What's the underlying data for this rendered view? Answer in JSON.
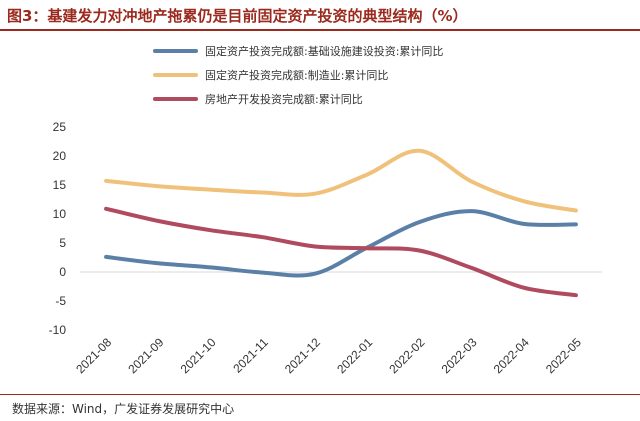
{
  "chart_data": {
    "type": "line",
    "title": "图3：基建发力对冲地产拖累仍是目前固定资产投资的典型结构（%）",
    "categories": [
      "2021-08",
      "2021-09",
      "2021-10",
      "2021-11",
      "2021-12",
      "2022-01",
      "2022-02",
      "2022-03",
      "2022-04",
      "2022-05"
    ],
    "ylim": [
      -10,
      25
    ],
    "yticks": [
      25,
      20,
      15,
      10,
      5,
      0,
      -5,
      -10
    ],
    "legend_position": "top",
    "series": [
      {
        "name": "固定资产投资完成额:基础设施建设投资:累计同比",
        "color": "#5b80a8",
        "values": [
          2.6,
          1.5,
          0.8,
          -0.1,
          -0.3,
          4.2,
          8.6,
          10.5,
          8.3,
          8.2
        ]
      },
      {
        "name": "固定资产投资完成额:制造业:累计同比",
        "color": "#f0c17a",
        "values": [
          15.7,
          14.8,
          14.2,
          13.7,
          13.5,
          16.8,
          20.9,
          15.6,
          12.2,
          10.6
        ]
      },
      {
        "name": "房地产开发投资完成额:累计同比",
        "color": "#b04a5e",
        "values": [
          10.9,
          8.8,
          7.2,
          6.0,
          4.4,
          4.1,
          3.7,
          0.7,
          -2.7,
          -4.0
        ]
      }
    ]
  },
  "footer": {
    "source": "数据来源：Wind，广发证券发展研究中心"
  }
}
